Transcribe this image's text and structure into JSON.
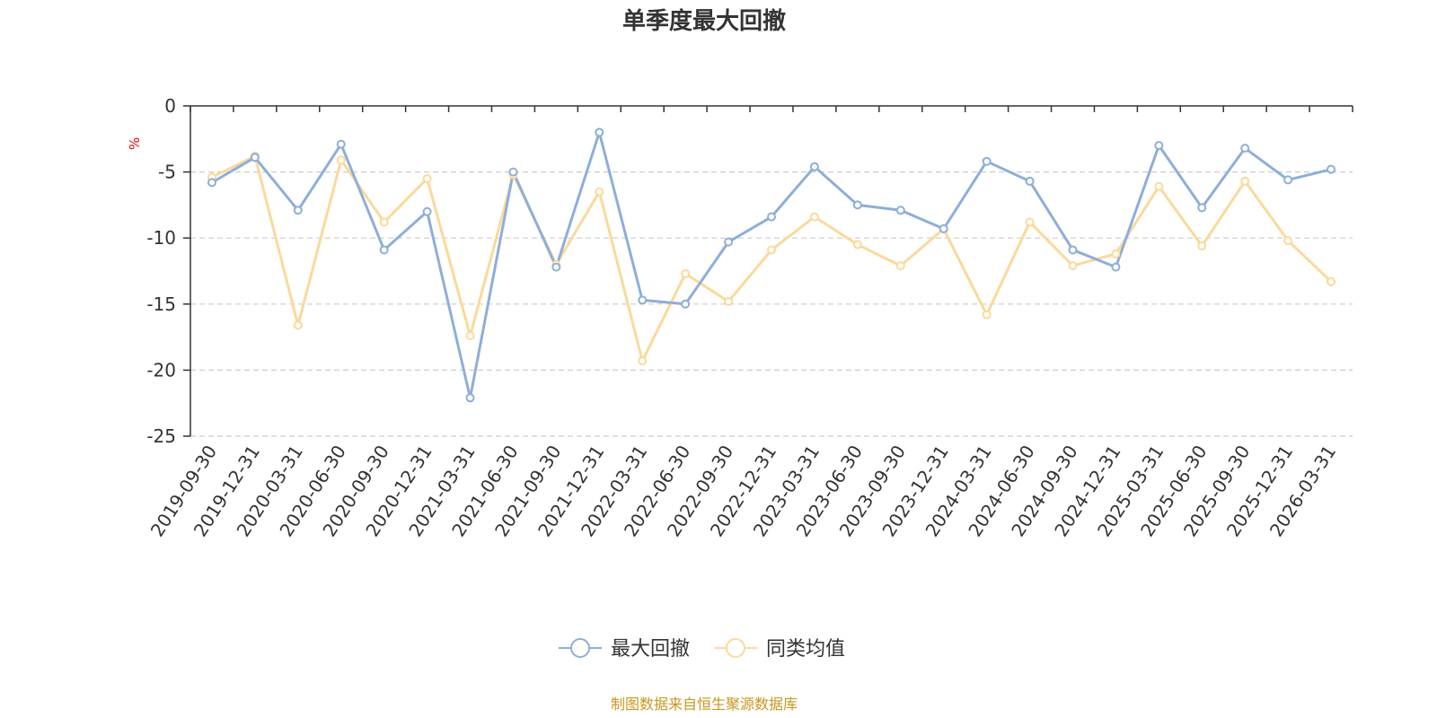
{
  "chart_data": {
    "type": "line",
    "title": "单季度最大回撤",
    "ylabel": "%",
    "ylim": [
      -25,
      0
    ],
    "yticks": [
      0,
      -5,
      -10,
      -15,
      -20,
      -25
    ],
    "grid": true,
    "legend_position": "bottom",
    "categories": [
      "2019-09-30",
      "2019-12-31",
      "2020-03-31",
      "2020-06-30",
      "2020-09-30",
      "2020-12-31",
      "2021-03-31",
      "2021-06-30",
      "2021-09-30",
      "2021-12-31",
      "2022-03-31",
      "2022-06-30",
      "2022-09-30",
      "2022-12-31",
      "2023-03-31",
      "2023-06-30",
      "2023-09-30",
      "2023-12-31",
      "2024-03-31",
      "2024-06-30",
      "2024-09-30",
      "2024-12-31",
      "2025-03-31",
      "2025-06-30",
      "2025-09-30",
      "2025-12-31",
      "2026-03-31"
    ],
    "series": [
      {
        "name": "最大回撤",
        "color": "#8eaed9",
        "values": [
          -5.8,
          -3.9,
          -7.9,
          -2.9,
          -10.9,
          -8.0,
          -22.1,
          -5.0,
          -12.2,
          -2.0,
          -14.7,
          -15.0,
          -10.3,
          -8.4,
          -4.6,
          -7.5,
          -7.9,
          -9.3,
          -4.2,
          -5.7,
          -10.9,
          -12.2,
          -3.0,
          -7.7,
          -3.2,
          -5.6,
          -4.8
        ]
      },
      {
        "name": "同类均值",
        "color": "#fbd99a",
        "values": [
          -5.4,
          -3.8,
          -16.6,
          -4.1,
          -8.8,
          -5.5,
          -17.4,
          -5.2,
          -12.0,
          -6.5,
          -19.3,
          -12.7,
          -14.8,
          -10.9,
          -8.4,
          -10.5,
          -12.1,
          -9.3,
          -15.8,
          -8.8,
          -12.1,
          -11.2,
          -6.1,
          -10.6,
          -5.7,
          -10.2,
          -13.3
        ]
      }
    ]
  },
  "footer": {
    "source": "制图数据来自恒生聚源数据库"
  }
}
